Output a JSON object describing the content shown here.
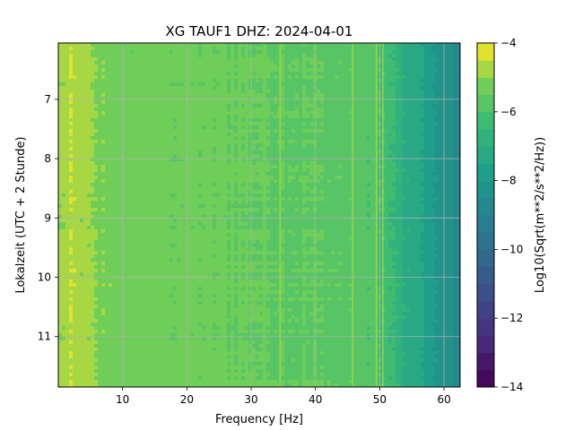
{
  "chart_data": {
    "type": "heatmap",
    "title": "XG TAUF1  DHZ: 2024-04-01",
    "xlabel": "Frequency [Hz]",
    "ylabel": "Lokalzeit (UTC + 2 Stunde)",
    "colorbar_label": "Log10(Sqrt(m**2/s**2/Hz))",
    "xlim": [
      0,
      62.5
    ],
    "ylim": [
      11.85,
      6.05
    ],
    "y_inverted": true,
    "clim": [
      -14,
      -4
    ],
    "colormap": "viridis",
    "grid": true,
    "x_ticks": [
      10,
      20,
      30,
      40,
      50,
      60
    ],
    "x_tick_labels": [
      "10",
      "20",
      "30",
      "40",
      "50",
      "60"
    ],
    "y_ticks": [
      7,
      8,
      9,
      10,
      11
    ],
    "y_tick_labels": [
      "7",
      "8",
      "9",
      "10",
      "11"
    ],
    "colorbar_ticks": [
      -4,
      -6,
      -8,
      -10,
      -12,
      -14
    ],
    "colorbar_tick_labels": [
      "−4",
      "−6",
      "−8",
      "−10",
      "−12",
      "−14"
    ],
    "spectrum_profile": {
      "frequency_hz": [
        0,
        2,
        4,
        6,
        10,
        15,
        20,
        25,
        30,
        35,
        40,
        44,
        48,
        50,
        52,
        54,
        56,
        58,
        60,
        62.5
      ],
      "log_amplitude": [
        -5.0,
        -4.6,
        -4.85,
        -5.1,
        -5.25,
        -5.3,
        -5.35,
        -5.4,
        -5.45,
        -5.5,
        -5.55,
        -5.65,
        -5.8,
        -6.0,
        -6.5,
        -7.0,
        -7.4,
        -7.8,
        -8.2,
        -8.8
      ]
    },
    "spectral_lines": [
      {
        "frequency_hz": 34.5,
        "log_amplitude": -4.6
      },
      {
        "frequency_hz": 45.8,
        "log_amplitude": -4.9
      },
      {
        "frequency_hz": 49.5,
        "log_amplitude": -5.0
      },
      {
        "frequency_hz": 50.5,
        "log_amplitude": -5.0
      }
    ]
  }
}
